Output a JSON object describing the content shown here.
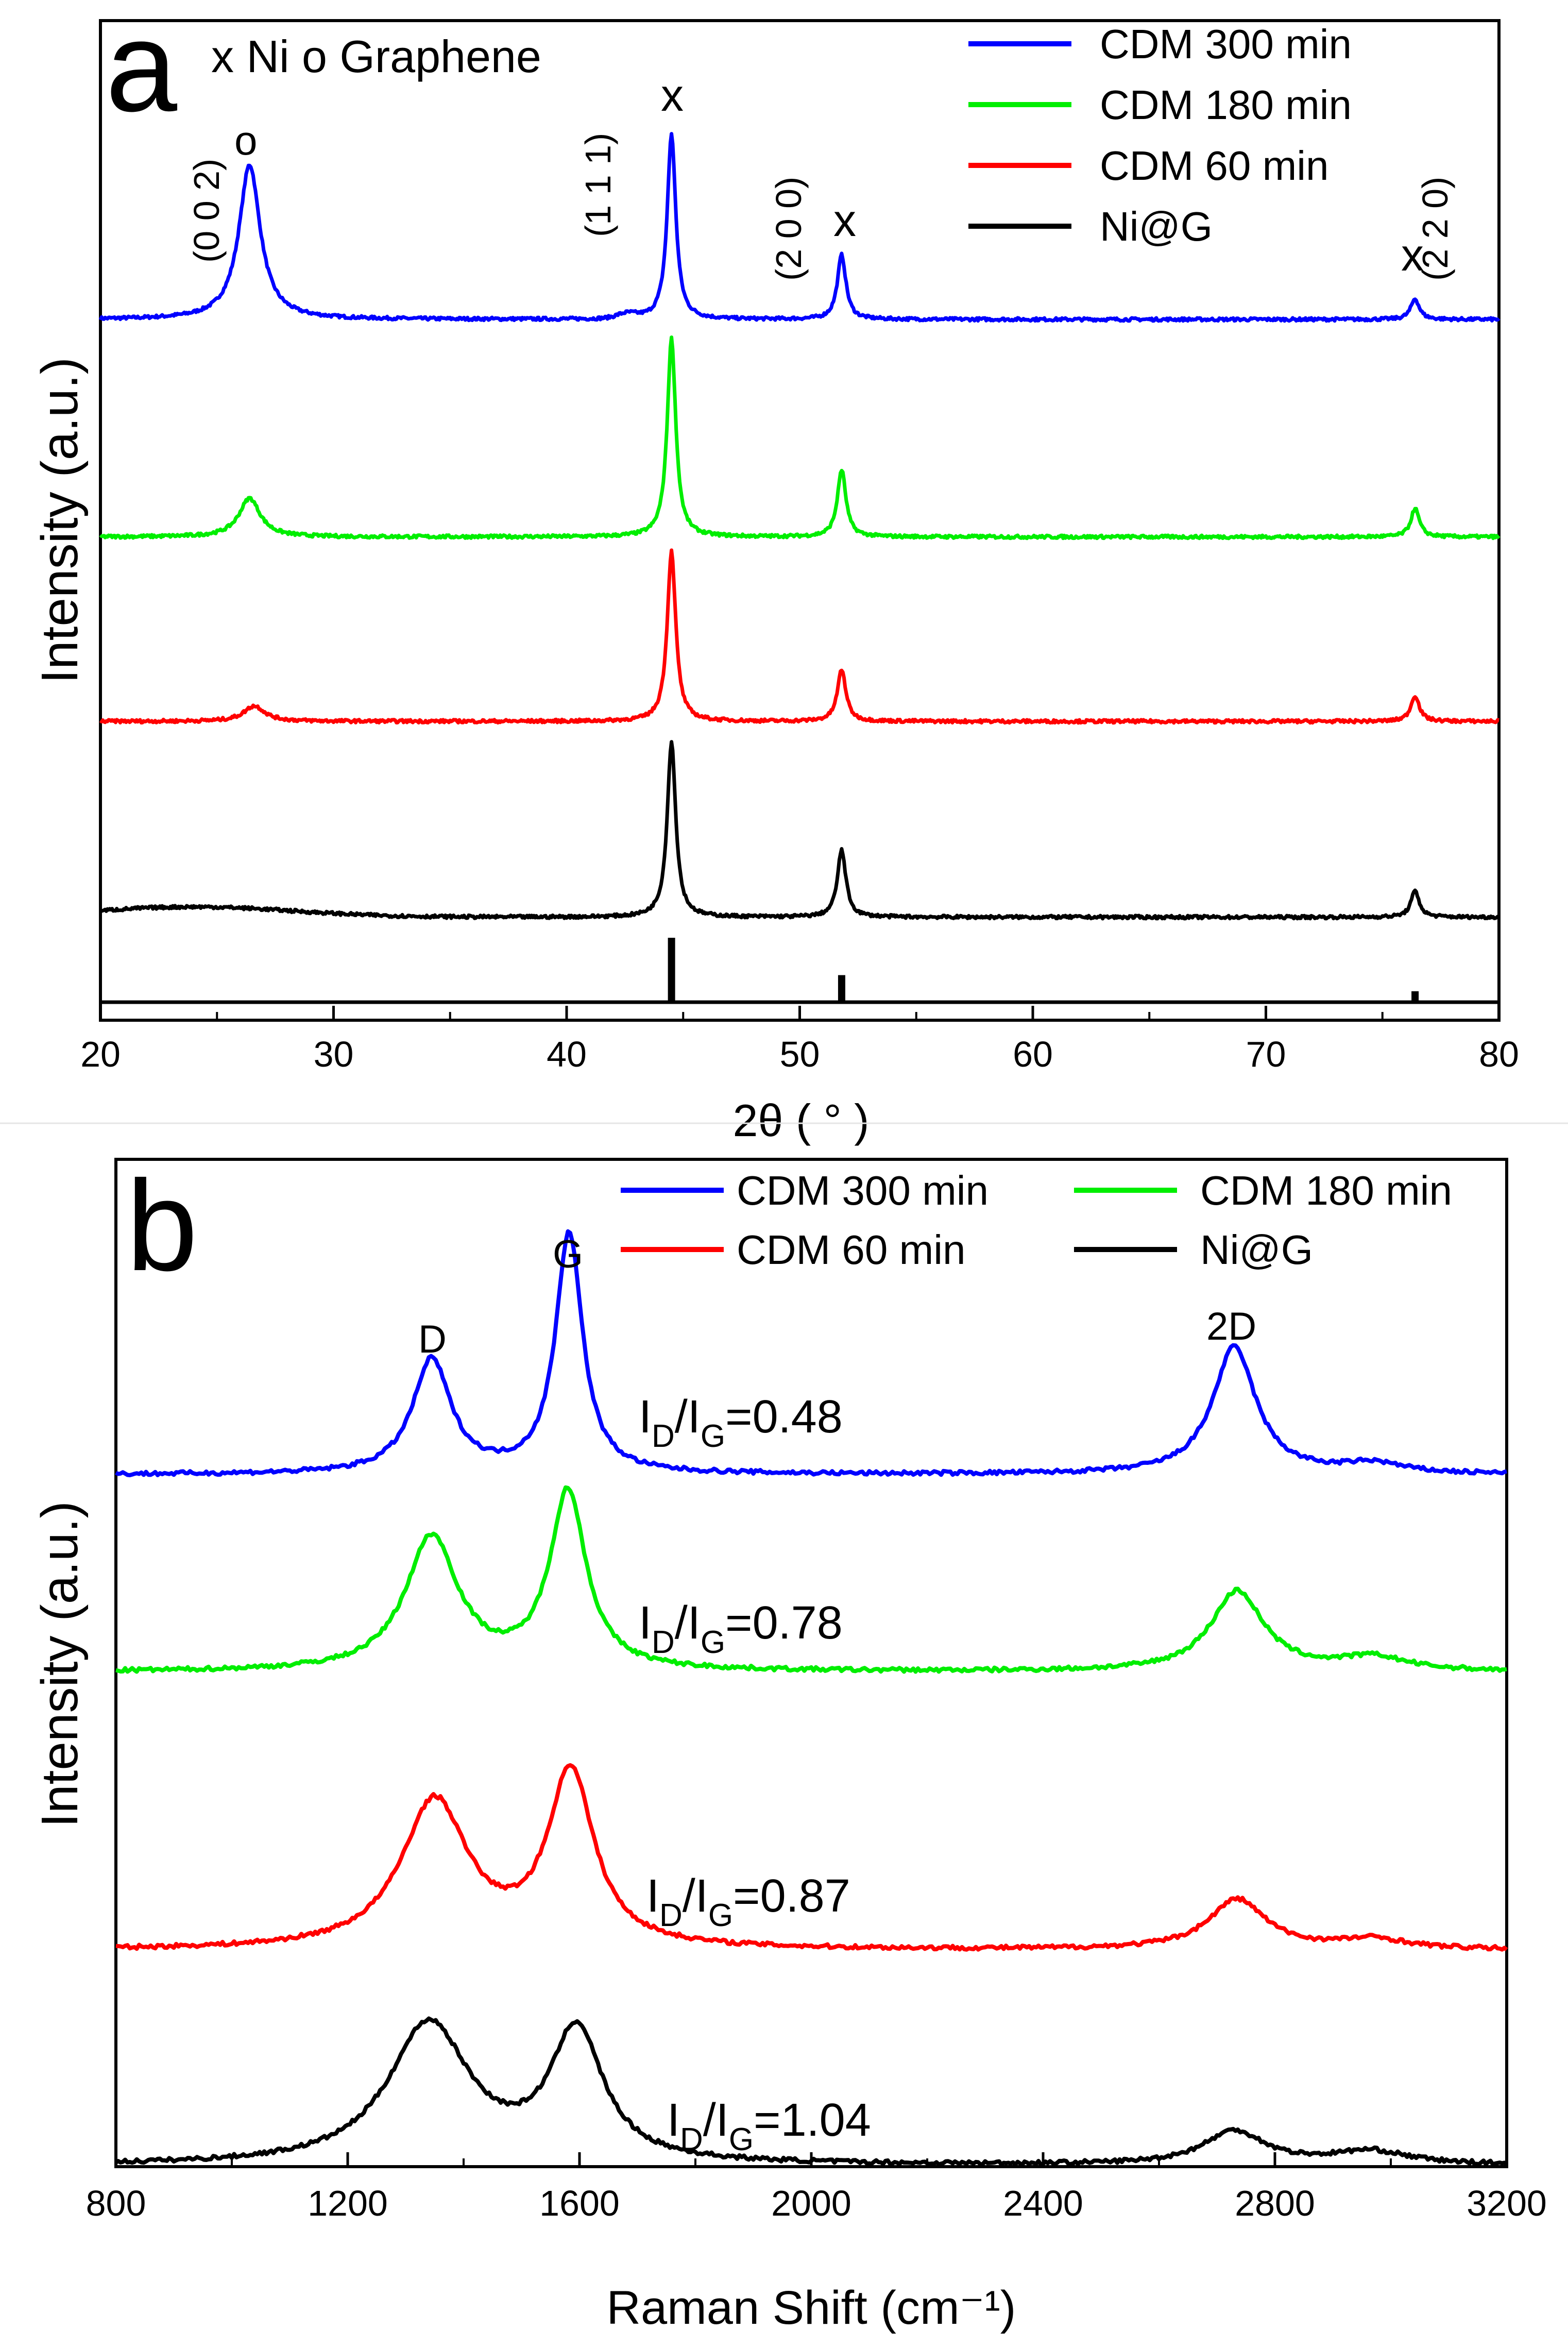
{
  "figure": {
    "panel_a_letter": "a",
    "panel_b_letter": "b"
  },
  "chart_data": [
    {
      "type": "line",
      "panel": "a",
      "title": "",
      "xlabel": "2θ ( ° )",
      "ylabel": "Intensity (a.u.)",
      "xlim": [
        20,
        80
      ],
      "x_ticks": [
        "20",
        "30",
        "40",
        "50",
        "60",
        "70",
        "80"
      ],
      "legend_title": "x Ni   o Graphene",
      "legend": [
        "CDM 300 min",
        "CDM 180 min",
        "CDM 60 min",
        "Ni@G"
      ],
      "series": [
        {
          "name": "CDM 300 min",
          "color": "#0000ff",
          "peaks": [
            {
              "x": 26.4,
              "h": 0.3
            },
            {
              "x": 44.5,
              "h": 0.36
            },
            {
              "x": 51.8,
              "h": 0.125
            },
            {
              "x": 76.4,
              "h": 0.04
            }
          ]
        },
        {
          "name": "CDM 180 min",
          "color": "#00ee00",
          "peaks": [
            {
              "x": 26.4,
              "h": 0.075
            },
            {
              "x": 44.5,
              "h": 0.385
            },
            {
              "x": 51.8,
              "h": 0.13
            },
            {
              "x": 76.4,
              "h": 0.055
            }
          ]
        },
        {
          "name": "CDM 60 min",
          "color": "#ff0000",
          "peaks": [
            {
              "x": 26.6,
              "h": 0.03
            },
            {
              "x": 44.5,
              "h": 0.33
            },
            {
              "x": 51.8,
              "h": 0.1
            },
            {
              "x": 76.4,
              "h": 0.05
            }
          ]
        },
        {
          "name": "Ni@G",
          "color": "#000000",
          "peaks": [
            {
              "x": 44.5,
              "h": 0.34
            },
            {
              "x": 51.8,
              "h": 0.13
            },
            {
              "x": 76.4,
              "h": 0.05
            }
          ]
        }
      ],
      "reference_lines": [
        {
          "x": 44.5,
          "relative_intensity": 100
        },
        {
          "x": 51.8,
          "relative_intensity": 42
        },
        {
          "x": 76.4,
          "relative_intensity": 17
        }
      ],
      "annotations": {
        "plane_002": "(0 0 2)",
        "plane_111": "(1 1 1)",
        "plane_200": "(2 0 0)",
        "plane_220": "(2 2 0)",
        "mark_graphene": "o",
        "mark_ni": "x"
      }
    },
    {
      "type": "line",
      "panel": "b",
      "title": "",
      "xlabel": "Raman Shift (cm⁻¹)",
      "ylabel": "Intensity (a.u.)",
      "xlim": [
        800,
        3200
      ],
      "x_ticks": [
        "800",
        "1200",
        "1600",
        "2000",
        "2400",
        "2800",
        "3200"
      ],
      "legend": [
        "CDM 300 min",
        "CDM 180 min",
        "CDM 60 min",
        "Ni@G"
      ],
      "peak_labels": [
        "D",
        "G",
        "2D"
      ],
      "series": [
        {
          "name": "CDM 300 min",
          "color": "#0000ff",
          "ratio_text": "ID/IG=0.48",
          "ratio": "0.48",
          "peaks": [
            {
              "x": 1345,
              "h": 0.34,
              "w": 40
            },
            {
              "x": 1582,
              "h": 0.72,
              "w": 28
            },
            {
              "x": 2730,
              "h": 0.38,
              "w": 45
            },
            {
              "x": 2970,
              "h": 0.03,
              "w": 60
            }
          ]
        },
        {
          "name": "CDM 180 min",
          "color": "#00ee00",
          "ratio_text": "ID/IG=0.78",
          "ratio": "0.78",
          "peaks": [
            {
              "x": 1345,
              "h": 0.4,
              "w": 55
            },
            {
              "x": 1580,
              "h": 0.53,
              "w": 38
            },
            {
              "x": 2735,
              "h": 0.24,
              "w": 55
            },
            {
              "x": 2970,
              "h": 0.04,
              "w": 70
            }
          ]
        },
        {
          "name": "CDM 60 min",
          "color": "#ff0000",
          "ratio_text": "ID/IG=0.87",
          "ratio": "0.87",
          "peaks": [
            {
              "x": 1350,
              "h": 0.44,
              "w": 70
            },
            {
              "x": 1585,
              "h": 0.52,
              "w": 48
            },
            {
              "x": 2735,
              "h": 0.15,
              "w": 60
            },
            {
              "x": 2970,
              "h": 0.03,
              "w": 70
            }
          ]
        },
        {
          "name": "Ni@G",
          "color": "#000000",
          "ratio_text": "ID/IG=1.04",
          "ratio": "1.04",
          "peaks": [
            {
              "x": 1340,
              "h": 0.42,
              "w": 85
            },
            {
              "x": 1595,
              "h": 0.39,
              "w": 55
            },
            {
              "x": 2730,
              "h": 0.1,
              "w": 65
            },
            {
              "x": 2965,
              "h": 0.04,
              "w": 80
            }
          ]
        }
      ]
    }
  ]
}
